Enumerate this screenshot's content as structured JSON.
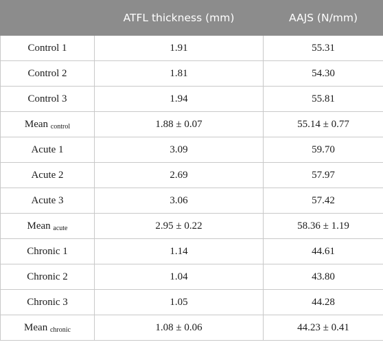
{
  "table": {
    "headers": [
      "",
      "ATFL thickness (mm)",
      "AAJS (N/mm)"
    ],
    "rows": [
      {
        "label": "Control 1",
        "sub": "",
        "thickness": "1.91",
        "aajs": "55.31"
      },
      {
        "label": "Control 2",
        "sub": "",
        "thickness": "1.81",
        "aajs": "54.30"
      },
      {
        "label": "Control 3",
        "sub": "",
        "thickness": "1.94",
        "aajs": "55.81"
      },
      {
        "label": "Mean",
        "sub": "control",
        "thickness": "1.88 ± 0.07",
        "aajs": "55.14 ± 0.77"
      },
      {
        "label": "Acute 1",
        "sub": "",
        "thickness": "3.09",
        "aajs": "59.70"
      },
      {
        "label": "Acute 2",
        "sub": "",
        "thickness": "2.69",
        "aajs": "57.97"
      },
      {
        "label": "Acute 3",
        "sub": "",
        "thickness": "3.06",
        "aajs": "57.42"
      },
      {
        "label": "Mean",
        "sub": "acute",
        "thickness": "2.95 ± 0.22",
        "aajs": "58.36 ± 1.19"
      },
      {
        "label": "Chronic 1",
        "sub": "",
        "thickness": "1.14",
        "aajs": "44.61"
      },
      {
        "label": "Chronic 2",
        "sub": "",
        "thickness": "1.04",
        "aajs": "43.80"
      },
      {
        "label": "Chronic 3",
        "sub": "",
        "thickness": "1.05",
        "aajs": "44.28"
      },
      {
        "label": "Mean",
        "sub": "chronic",
        "thickness": "1.08 ± 0.06",
        "aajs": "44.23 ± 0.41"
      }
    ]
  },
  "colors": {
    "header_bg": "#8c8c8c",
    "header_text": "#ffffff",
    "border": "#c8c8c8"
  }
}
